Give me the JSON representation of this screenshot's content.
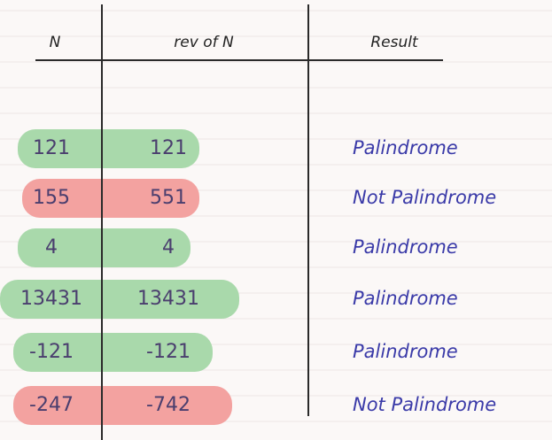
{
  "table": {
    "header": [
      "N",
      "rev of N",
      "Result"
    ],
    "rows": [
      [
        "121",
        "121",
        "Palindrome"
      ],
      [
        "155",
        "551",
        "Not Palindrome"
      ],
      [
        "4",
        "4",
        "Palindrome"
      ],
      [
        "13431",
        "13431",
        "Palindrome"
      ],
      [
        "-121",
        "-121",
        "Palindrome"
      ],
      [
        "-247",
        "-742",
        "Not Palindrome"
      ]
    ],
    "row_colors": [
      "#a9d9ab",
      "#f3a2a0",
      "#a9d9ab",
      "#a9d9ab",
      "#a9d9ab",
      "#f3a2a0"
    ]
  }
}
